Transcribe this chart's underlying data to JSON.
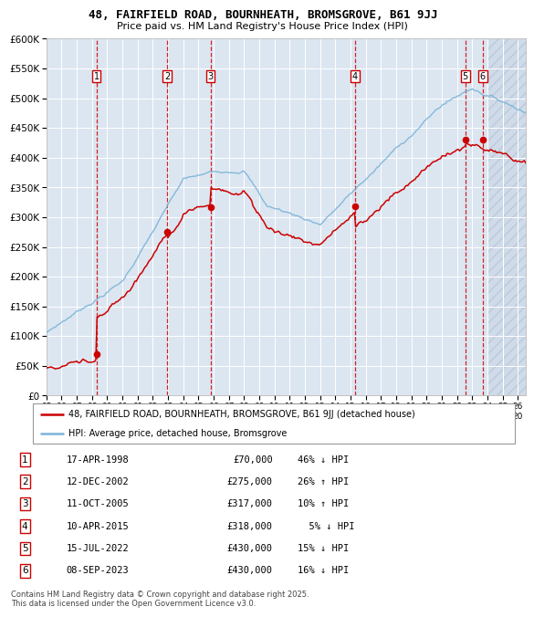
{
  "title": "48, FAIRFIELD ROAD, BOURNHEATH, BROMSGROVE, B61 9JJ",
  "subtitle": "Price paid vs. HM Land Registry's House Price Index (HPI)",
  "bg_color": "#dce6f1",
  "grid_color": "#ffffff",
  "red_line_color": "#cc0000",
  "blue_line_color": "#7ab4d8",
  "sale_dot_color": "#cc0000",
  "sale_dates_x": [
    1998.29,
    2002.95,
    2005.79,
    2015.28,
    2022.54,
    2023.69
  ],
  "sale_prices_y": [
    70000,
    275000,
    317000,
    318000,
    430000,
    430000
  ],
  "sale_labels": [
    "1",
    "2",
    "3",
    "4",
    "5",
    "6"
  ],
  "vline_color": "#cc0000",
  "ylim": [
    0,
    600000
  ],
  "ytick_values": [
    0,
    50000,
    100000,
    150000,
    200000,
    250000,
    300000,
    350000,
    400000,
    450000,
    500000,
    550000,
    600000
  ],
  "ytick_labels": [
    "£0",
    "£50K",
    "£100K",
    "£150K",
    "£200K",
    "£250K",
    "£300K",
    "£350K",
    "£400K",
    "£450K",
    "£500K",
    "£550K",
    "£600K"
  ],
  "xlim": [
    1995.0,
    2026.5
  ],
  "xtick_years": [
    1995,
    1996,
    1997,
    1998,
    1999,
    2000,
    2001,
    2002,
    2003,
    2004,
    2005,
    2006,
    2007,
    2008,
    2009,
    2010,
    2011,
    2012,
    2013,
    2014,
    2015,
    2016,
    2017,
    2018,
    2019,
    2020,
    2021,
    2022,
    2023,
    2024,
    2025,
    2026
  ],
  "legend_red_label": "48, FAIRFIELD ROAD, BOURNHEATH, BROMSGROVE, B61 9JJ (detached house)",
  "legend_blue_label": "HPI: Average price, detached house, Bromsgrove",
  "table_rows": [
    [
      "1",
      "17-APR-1998",
      "£70,000",
      "46% ↓ HPI"
    ],
    [
      "2",
      "12-DEC-2002",
      "£275,000",
      "26% ↑ HPI"
    ],
    [
      "3",
      "11-OCT-2005",
      "£317,000",
      "10% ↑ HPI"
    ],
    [
      "4",
      "10-APR-2015",
      "£318,000",
      "  5% ↓ HPI"
    ],
    [
      "5",
      "15-JUL-2022",
      "£430,000",
      "15% ↓ HPI"
    ],
    [
      "6",
      "08-SEP-2023",
      "£430,000",
      "16% ↓ HPI"
    ]
  ],
  "footnote": "Contains HM Land Registry data © Crown copyright and database right 2025.\nThis data is licensed under the Open Government Licence v3.0."
}
